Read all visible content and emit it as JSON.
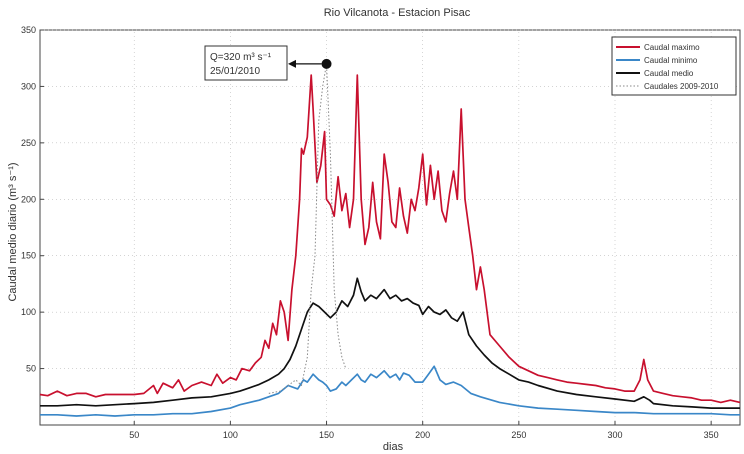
{
  "chart_data": {
    "type": "line",
    "title": "Rio Vilcanota - Estacion Pisac",
    "xlabel": "dias",
    "ylabel": "Caudal medio diario (m³ s⁻¹)",
    "xlim": [
      1,
      365
    ],
    "ylim": [
      0,
      350
    ],
    "xticks": [
      50,
      100,
      150,
      200,
      250,
      300,
      350
    ],
    "yticks": [
      50,
      100,
      150,
      200,
      250,
      300,
      350
    ],
    "legend_position": "top-right",
    "annotation": {
      "line1": "Q=320 m³ s⁻¹",
      "line2": "25/01/2010",
      "point": {
        "x": 150,
        "y": 320
      }
    },
    "series": [
      {
        "name": "Caudal maximo",
        "color": "#c8102e",
        "points": [
          [
            1,
            27
          ],
          [
            5,
            26
          ],
          [
            10,
            30
          ],
          [
            15,
            26
          ],
          [
            20,
            28
          ],
          [
            25,
            28
          ],
          [
            30,
            25
          ],
          [
            35,
            27
          ],
          [
            40,
            27
          ],
          [
            45,
            27
          ],
          [
            50,
            27
          ],
          [
            55,
            28
          ],
          [
            60,
            35
          ],
          [
            62,
            28
          ],
          [
            65,
            37
          ],
          [
            70,
            33
          ],
          [
            73,
            40
          ],
          [
            76,
            30
          ],
          [
            80,
            35
          ],
          [
            85,
            38
          ],
          [
            90,
            35
          ],
          [
            93,
            45
          ],
          [
            96,
            37
          ],
          [
            100,
            42
          ],
          [
            103,
            40
          ],
          [
            106,
            50
          ],
          [
            110,
            48
          ],
          [
            113,
            55
          ],
          [
            116,
            60
          ],
          [
            118,
            75
          ],
          [
            120,
            68
          ],
          [
            122,
            90
          ],
          [
            124,
            80
          ],
          [
            126,
            110
          ],
          [
            128,
            100
          ],
          [
            130,
            75
          ],
          [
            132,
            120
          ],
          [
            134,
            150
          ],
          [
            136,
            200
          ],
          [
            137,
            245
          ],
          [
            138,
            240
          ],
          [
            140,
            255
          ],
          [
            142,
            310
          ],
          [
            143,
            280
          ],
          [
            145,
            215
          ],
          [
            147,
            230
          ],
          [
            149,
            260
          ],
          [
            150,
            200
          ],
          [
            152,
            195
          ],
          [
            154,
            185
          ],
          [
            156,
            220
          ],
          [
            158,
            190
          ],
          [
            160,
            205
          ],
          [
            162,
            175
          ],
          [
            164,
            200
          ],
          [
            166,
            310
          ],
          [
            168,
            200
          ],
          [
            170,
            160
          ],
          [
            172,
            175
          ],
          [
            174,
            215
          ],
          [
            176,
            180
          ],
          [
            178,
            165
          ],
          [
            180,
            240
          ],
          [
            182,
            215
          ],
          [
            184,
            180
          ],
          [
            186,
            175
          ],
          [
            188,
            210
          ],
          [
            190,
            185
          ],
          [
            192,
            170
          ],
          [
            194,
            200
          ],
          [
            196,
            190
          ],
          [
            198,
            210
          ],
          [
            200,
            240
          ],
          [
            202,
            195
          ],
          [
            204,
            230
          ],
          [
            206,
            200
          ],
          [
            208,
            225
          ],
          [
            210,
            190
          ],
          [
            212,
            180
          ],
          [
            214,
            205
          ],
          [
            216,
            225
          ],
          [
            218,
            200
          ],
          [
            220,
            280
          ],
          [
            222,
            200
          ],
          [
            224,
            175
          ],
          [
            226,
            150
          ],
          [
            228,
            120
          ],
          [
            230,
            140
          ],
          [
            232,
            120
          ],
          [
            235,
            80
          ],
          [
            240,
            70
          ],
          [
            245,
            60
          ],
          [
            250,
            52
          ],
          [
            255,
            48
          ],
          [
            260,
            44
          ],
          [
            265,
            42
          ],
          [
            270,
            40
          ],
          [
            275,
            38
          ],
          [
            280,
            37
          ],
          [
            285,
            36
          ],
          [
            290,
            35
          ],
          [
            295,
            33
          ],
          [
            300,
            32
          ],
          [
            305,
            30
          ],
          [
            310,
            30
          ],
          [
            313,
            40
          ],
          [
            315,
            58
          ],
          [
            317,
            40
          ],
          [
            320,
            30
          ],
          [
            325,
            28
          ],
          [
            330,
            26
          ],
          [
            335,
            25
          ],
          [
            340,
            24
          ],
          [
            345,
            22
          ],
          [
            350,
            22
          ],
          [
            355,
            20
          ],
          [
            360,
            22
          ],
          [
            365,
            20
          ]
        ]
      },
      {
        "name": "Caudal minimo",
        "color": "#3a87c8",
        "points": [
          [
            1,
            9
          ],
          [
            10,
            9
          ],
          [
            20,
            8
          ],
          [
            30,
            9
          ],
          [
            40,
            8
          ],
          [
            50,
            9
          ],
          [
            60,
            9
          ],
          [
            70,
            10
          ],
          [
            80,
            10
          ],
          [
            90,
            12
          ],
          [
            100,
            15
          ],
          [
            105,
            18
          ],
          [
            110,
            20
          ],
          [
            115,
            22
          ],
          [
            120,
            25
          ],
          [
            125,
            28
          ],
          [
            130,
            35
          ],
          [
            135,
            32
          ],
          [
            138,
            40
          ],
          [
            140,
            38
          ],
          [
            143,
            45
          ],
          [
            146,
            40
          ],
          [
            148,
            38
          ],
          [
            150,
            35
          ],
          [
            152,
            30
          ],
          [
            155,
            32
          ],
          [
            158,
            38
          ],
          [
            160,
            35
          ],
          [
            163,
            40
          ],
          [
            166,
            45
          ],
          [
            168,
            40
          ],
          [
            170,
            38
          ],
          [
            173,
            45
          ],
          [
            176,
            42
          ],
          [
            180,
            48
          ],
          [
            183,
            42
          ],
          [
            186,
            45
          ],
          [
            188,
            40
          ],
          [
            190,
            46
          ],
          [
            193,
            44
          ],
          [
            196,
            38
          ],
          [
            200,
            38
          ],
          [
            203,
            45
          ],
          [
            206,
            52
          ],
          [
            209,
            40
          ],
          [
            212,
            36
          ],
          [
            216,
            38
          ],
          [
            220,
            35
          ],
          [
            225,
            28
          ],
          [
            230,
            25
          ],
          [
            240,
            20
          ],
          [
            250,
            17
          ],
          [
            260,
            15
          ],
          [
            270,
            14
          ],
          [
            280,
            13
          ],
          [
            290,
            12
          ],
          [
            300,
            11
          ],
          [
            310,
            11
          ],
          [
            320,
            10
          ],
          [
            330,
            10
          ],
          [
            340,
            10
          ],
          [
            350,
            10
          ],
          [
            360,
            9
          ],
          [
            365,
            9
          ]
        ]
      },
      {
        "name": "Caudal medio",
        "color": "#111111",
        "points": [
          [
            1,
            17
          ],
          [
            10,
            17
          ],
          [
            20,
            18
          ],
          [
            30,
            17
          ],
          [
            40,
            18
          ],
          [
            50,
            19
          ],
          [
            60,
            20
          ],
          [
            70,
            22
          ],
          [
            80,
            24
          ],
          [
            90,
            25
          ],
          [
            100,
            28
          ],
          [
            105,
            30
          ],
          [
            110,
            33
          ],
          [
            115,
            36
          ],
          [
            120,
            40
          ],
          [
            125,
            45
          ],
          [
            128,
            50
          ],
          [
            131,
            58
          ],
          [
            134,
            70
          ],
          [
            137,
            85
          ],
          [
            140,
            100
          ],
          [
            143,
            108
          ],
          [
            146,
            105
          ],
          [
            149,
            100
          ],
          [
            152,
            95
          ],
          [
            155,
            100
          ],
          [
            158,
            110
          ],
          [
            161,
            105
          ],
          [
            164,
            115
          ],
          [
            166,
            130
          ],
          [
            168,
            118
          ],
          [
            170,
            110
          ],
          [
            173,
            115
          ],
          [
            176,
            112
          ],
          [
            180,
            120
          ],
          [
            183,
            112
          ],
          [
            186,
            115
          ],
          [
            189,
            110
          ],
          [
            192,
            112
          ],
          [
            195,
            108
          ],
          [
            198,
            106
          ],
          [
            200,
            98
          ],
          [
            203,
            105
          ],
          [
            206,
            100
          ],
          [
            209,
            98
          ],
          [
            212,
            102
          ],
          [
            215,
            95
          ],
          [
            218,
            92
          ],
          [
            221,
            100
          ],
          [
            224,
            80
          ],
          [
            228,
            70
          ],
          [
            232,
            62
          ],
          [
            236,
            55
          ],
          [
            240,
            50
          ],
          [
            245,
            45
          ],
          [
            250,
            40
          ],
          [
            255,
            38
          ],
          [
            260,
            35
          ],
          [
            270,
            30
          ],
          [
            280,
            27
          ],
          [
            290,
            25
          ],
          [
            300,
            23
          ],
          [
            310,
            21
          ],
          [
            315,
            25
          ],
          [
            318,
            22
          ],
          [
            320,
            19
          ],
          [
            330,
            17
          ],
          [
            340,
            16
          ],
          [
            350,
            15
          ],
          [
            360,
            15
          ],
          [
            365,
            15
          ]
        ]
      },
      {
        "name": "Caudales 2009-2010",
        "color": "#888888",
        "points": [
          [
            120,
            28
          ],
          [
            126,
            30
          ],
          [
            130,
            35
          ],
          [
            134,
            40
          ],
          [
            137,
            35
          ],
          [
            140,
            60
          ],
          [
            142,
            120
          ],
          [
            144,
            150
          ],
          [
            146,
            270
          ],
          [
            148,
            300
          ],
          [
            150,
            320
          ],
          [
            152,
            240
          ],
          [
            154,
            120
          ],
          [
            156,
            80
          ],
          [
            158,
            60
          ],
          [
            160,
            50
          ]
        ]
      }
    ]
  }
}
